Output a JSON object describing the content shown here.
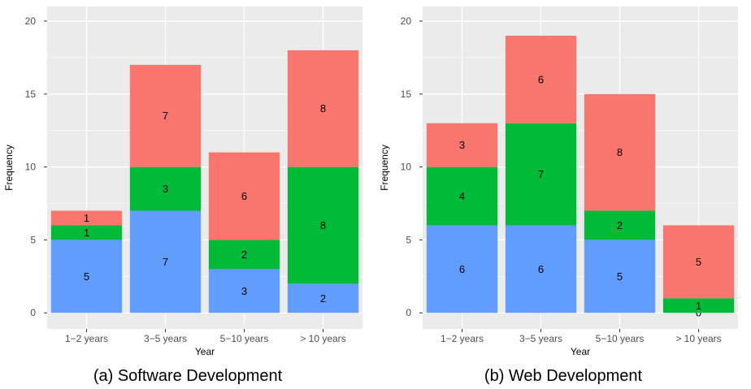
{
  "colors": {
    "panel_bg": "#EBEBEB",
    "grid": "#FFFFFF",
    "red": "#F8766D",
    "green": "#00BA38",
    "blue": "#619CFF"
  },
  "chart_data": [
    {
      "type": "bar",
      "stacked": true,
      "caption": "(a) Software Development",
      "xlabel": "Year",
      "ylabel": "Frequency",
      "categories": [
        "1−2 years",
        "3−5 years",
        "5−10 years",
        "> 10 years"
      ],
      "ylim": [
        0,
        20
      ],
      "yticks": [
        "0",
        "5",
        "10",
        "15",
        "20"
      ],
      "series": [
        {
          "color": "#619CFF",
          "values": [
            5,
            7,
            3,
            2
          ]
        },
        {
          "color": "#00BA38",
          "values": [
            1,
            3,
            2,
            8
          ]
        },
        {
          "color": "#F8766D",
          "values": [
            1,
            7,
            6,
            8
          ]
        }
      ],
      "legend": "none",
      "grid": true
    },
    {
      "type": "bar",
      "stacked": true,
      "caption": "(b) Web Development",
      "xlabel": "Year",
      "ylabel": "Frequency",
      "categories": [
        "1−2 years",
        "3−5 years",
        "5−10 years",
        "> 10 years"
      ],
      "ylim": [
        0,
        20
      ],
      "yticks": [
        "0",
        "5",
        "10",
        "15",
        "20"
      ],
      "series": [
        {
          "color": "#619CFF",
          "values": [
            6,
            6,
            5,
            0
          ]
        },
        {
          "color": "#00BA38",
          "values": [
            4,
            7,
            2,
            1
          ]
        },
        {
          "color": "#F8766D",
          "values": [
            3,
            6,
            8,
            5
          ]
        }
      ],
      "legend": "none",
      "grid": true
    }
  ]
}
